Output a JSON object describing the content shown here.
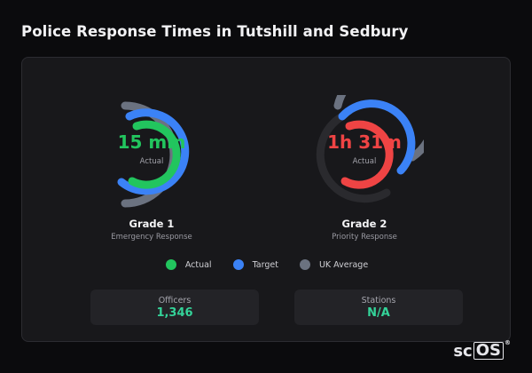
{
  "title": "Police Response Times in Tutshill and Sedbury",
  "colors": {
    "actual_green": "#22c55e",
    "actual_red": "#ef4444",
    "target": "#3b82f6",
    "uk_average": "#6b7280",
    "stat_value": "#34d399"
  },
  "gauges": [
    {
      "grade": "Grade 1",
      "description": "Emergency Response",
      "value_text": "15 min",
      "value_label": "Actual",
      "status_color": "#22c55e"
    },
    {
      "grade": "Grade 2",
      "description": "Priority Response",
      "value_text": "1h 31m",
      "value_label": "Actual",
      "status_color": "#ef4444"
    }
  ],
  "legend": [
    {
      "label": "Actual",
      "color": "#22c55e"
    },
    {
      "label": "Target",
      "color": "#3b82f6"
    },
    {
      "label": "UK Average",
      "color": "#6b7280"
    }
  ],
  "stats": [
    {
      "label": "Officers",
      "value": "1,346"
    },
    {
      "label": "Stations",
      "value": "N/A"
    }
  ],
  "logo": {
    "text_a": "sc",
    "text_b": "OS",
    "reg": "®"
  }
}
